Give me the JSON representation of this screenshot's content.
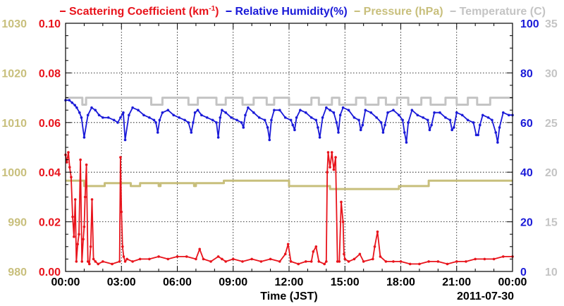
{
  "chart_data": {
    "type": "line",
    "legend": {
      "placement": "top",
      "entries": [
        {
          "label_before": "Scattering Coefficient (km",
          "label_sup": "-1",
          "label_after": ")",
          "color": "#e8141c"
        },
        {
          "label": "Relative Humidity(%)",
          "color": "#1a1ad8"
        },
        {
          "label": "Pressure (hPa)",
          "color": "#c8bf7c"
        },
        {
          "label": "Temperature (C)",
          "color": "#c4c4c4"
        }
      ]
    },
    "xlabel": "Time (JST)",
    "date_label": "2011-07-30",
    "x_unit": "hour (JST)",
    "xlim": [
      0,
      24
    ],
    "x_ticks": [
      0,
      3,
      6,
      9,
      12,
      15,
      18,
      21,
      24
    ],
    "x_tick_labels": [
      "00:00",
      "03:00",
      "06:00",
      "09:00",
      "12:00",
      "15:00",
      "18:00",
      "21:00",
      "00:00"
    ],
    "grid": true,
    "axes": {
      "scattering": {
        "side": "left-inner",
        "color": "#e8141c",
        "ylim": [
          0,
          0.1
        ],
        "tick_labels": [
          "0.00",
          "0.02",
          "0.04",
          "0.06",
          "0.08",
          "0.10"
        ]
      },
      "pressure": {
        "side": "left-outer",
        "color": "#c8bf7c",
        "ylim": [
          980,
          1030
        ],
        "tick_labels": [
          "980",
          "990",
          "1000",
          "1010",
          "1020",
          "1030"
        ]
      },
      "humidity": {
        "side": "right-inner",
        "color": "#1a1ad8",
        "ylim": [
          0,
          100
        ],
        "tick_labels": [
          "0",
          "20",
          "40",
          "60",
          "80",
          "100"
        ]
      },
      "temperature": {
        "side": "right-outer",
        "color": "#c4c4c4",
        "ylim": [
          10,
          35
        ],
        "tick_labels": [
          "10",
          "15",
          "20",
          "25",
          "30",
          "35"
        ]
      }
    },
    "series": [
      {
        "name": "Scattering Coefficient",
        "axis": "scattering",
        "color": "#e8141c",
        "markers": true,
        "x": [
          0.0,
          0.07,
          0.15,
          0.22,
          0.3,
          0.38,
          0.45,
          0.52,
          0.58,
          0.65,
          0.72,
          0.8,
          0.88,
          0.95,
          1.0,
          1.05,
          1.12,
          1.2,
          1.28,
          1.35,
          1.42,
          1.5,
          1.6,
          1.75,
          2.0,
          2.5,
          2.9,
          2.95,
          3.0,
          3.06,
          3.12,
          3.2,
          3.3,
          3.6,
          4.0,
          4.5,
          5.0,
          5.5,
          6.0,
          6.5,
          7.0,
          7.2,
          7.4,
          7.8,
          8.2,
          8.4,
          8.6,
          9.0,
          9.5,
          10.0,
          10.5,
          11.0,
          11.5,
          11.8,
          11.95,
          12.1,
          12.5,
          12.9,
          13.2,
          13.3,
          13.45,
          13.6,
          13.9,
          14.0,
          14.05,
          14.1,
          14.2,
          14.3,
          14.4,
          14.5,
          14.6,
          14.7,
          14.8,
          14.9,
          14.95,
          15.0,
          15.2,
          15.5,
          15.8,
          16.0,
          16.5,
          16.6,
          16.75,
          16.9,
          17.2,
          17.6,
          18.0,
          18.5,
          19.0,
          19.5,
          20.0,
          20.5,
          21.0,
          21.5,
          22.0,
          22.5,
          23.0,
          23.5,
          24.0
        ],
        "values": [
          0.047,
          0.044,
          0.048,
          0.042,
          0.038,
          0.022,
          0.014,
          0.029,
          0.004,
          0.011,
          0.015,
          0.045,
          0.004,
          0.013,
          0.018,
          0.03,
          0.043,
          0.004,
          0.003,
          0.01,
          0.029,
          0.005,
          0.004,
          0.003,
          0.004,
          0.003,
          0.004,
          0.046,
          0.024,
          0.01,
          0.006,
          0.004,
          0.005,
          0.004,
          0.005,
          0.005,
          0.006,
          0.005,
          0.006,
          0.006,
          0.005,
          0.009,
          0.005,
          0.004,
          0.006,
          0.005,
          0.004,
          0.005,
          0.004,
          0.005,
          0.004,
          0.005,
          0.004,
          0.007,
          0.011,
          0.004,
          0.003,
          0.004,
          0.004,
          0.008,
          0.01,
          0.004,
          0.003,
          0.004,
          0.04,
          0.048,
          0.042,
          0.048,
          0.041,
          0.046,
          0.004,
          0.004,
          0.028,
          0.02,
          0.007,
          0.005,
          0.004,
          0.005,
          0.007,
          0.004,
          0.005,
          0.01,
          0.016,
          0.006,
          0.004,
          0.004,
          0.004,
          0.003,
          0.003,
          0.004,
          0.004,
          0.003,
          0.004,
          0.004,
          0.005,
          0.005,
          0.005,
          0.006,
          0.006
        ]
      },
      {
        "name": "Relative Humidity",
        "axis": "humidity",
        "color": "#1a1ad8",
        "markers": true,
        "x": [
          0.0,
          0.2,
          0.35,
          0.5,
          0.6,
          0.75,
          0.85,
          1.0,
          1.2,
          1.4,
          1.6,
          1.8,
          2.0,
          2.3,
          2.6,
          2.8,
          2.95,
          3.1,
          3.2,
          3.4,
          3.6,
          3.9,
          4.2,
          4.5,
          4.75,
          4.85,
          4.95,
          5.05,
          5.2,
          5.5,
          5.8,
          6.1,
          6.4,
          6.6,
          6.75,
          6.85,
          6.95,
          7.1,
          7.3,
          7.6,
          7.9,
          8.1,
          8.2,
          8.3,
          8.4,
          8.6,
          8.9,
          9.2,
          9.45,
          9.55,
          9.65,
          9.8,
          10.1,
          10.4,
          10.7,
          10.85,
          10.95,
          11.05,
          11.2,
          11.5,
          11.8,
          12.1,
          12.2,
          12.3,
          12.4,
          12.6,
          12.9,
          13.2,
          13.45,
          13.55,
          13.65,
          13.8,
          14.0,
          14.2,
          14.4,
          14.55,
          14.65,
          14.75,
          14.9,
          15.2,
          15.5,
          15.75,
          15.85,
          15.95,
          16.1,
          16.4,
          16.7,
          16.95,
          17.05,
          17.15,
          17.3,
          17.6,
          17.9,
          18.1,
          18.2,
          18.3,
          18.4,
          18.6,
          18.9,
          19.2,
          19.45,
          19.55,
          19.65,
          19.8,
          20.1,
          20.4,
          20.65,
          20.75,
          20.85,
          21.0,
          21.3,
          21.6,
          21.9,
          22.05,
          22.15,
          22.25,
          22.4,
          22.7,
          22.9,
          23.1,
          23.2,
          23.3,
          23.5,
          23.8,
          24.0
        ],
        "values": [
          69,
          69,
          68,
          67,
          66,
          64,
          62,
          54,
          63,
          66,
          65,
          63,
          62,
          62,
          61,
          60,
          62,
          64,
          53,
          63,
          66,
          65,
          63,
          62,
          61,
          60,
          56,
          61,
          64,
          65,
          63,
          62,
          61,
          60,
          56,
          60,
          64,
          65,
          63,
          62,
          61,
          60,
          54,
          62,
          65,
          64,
          62,
          61,
          60,
          58,
          63,
          66,
          64,
          62,
          61,
          58,
          53,
          61,
          65,
          65,
          62,
          61,
          59,
          57,
          62,
          65,
          64,
          62,
          61,
          58,
          54,
          62,
          66,
          65,
          64,
          60,
          56,
          63,
          66,
          65,
          62,
          61,
          57,
          59,
          65,
          64,
          62,
          60,
          56,
          59,
          64,
          65,
          63,
          61,
          56,
          52,
          60,
          65,
          63,
          62,
          61,
          57,
          59,
          64,
          64,
          62,
          61,
          57,
          58,
          64,
          63,
          61,
          60,
          55,
          55,
          59,
          63,
          62,
          61,
          56,
          52,
          58,
          64,
          63,
          63
        ]
      },
      {
        "name": "Pressure",
        "axis": "pressure",
        "color": "#c8bf7c",
        "step": true,
        "x": [
          0.0,
          1.0,
          2.1,
          3.4,
          3.5,
          4.0,
          5.0,
          5.1,
          6.9,
          7.0,
          8.5,
          8.9,
          12.0,
          13.9,
          14.2,
          17.9,
          19.5,
          24.0
        ],
        "values": [
          998.3,
          997.2,
          997.8,
          997.8,
          997.2,
          997.8,
          997.2,
          997.8,
          997.2,
          997.8,
          998.3,
          998.3,
          997.2,
          997.2,
          996.6,
          997.2,
          998.3,
          998.3
        ]
      },
      {
        "name": "Temperature",
        "axis": "temperature",
        "color": "#c4c4c4",
        "step": true,
        "x": [
          0.0,
          0.9,
          1.1,
          2.2,
          4.6,
          5.2,
          6.6,
          7.1,
          8.1,
          8.6,
          9.5,
          10.1,
          10.8,
          11.2,
          12.0,
          13.2,
          13.6,
          14.3,
          14.7,
          15.6,
          16.1,
          16.8,
          17.2,
          17.8,
          18.4,
          19.1,
          19.6,
          20.4,
          21.0,
          21.6,
          22.1,
          22.8,
          23.3,
          24.0
        ],
        "values": [
          27.5,
          26.8,
          27.5,
          27.5,
          26.8,
          27.5,
          26.8,
          27.5,
          26.8,
          27.5,
          26.8,
          27.5,
          26.8,
          27.5,
          26.8,
          27.5,
          26.8,
          27.5,
          26.8,
          27.5,
          26.8,
          27.5,
          26.8,
          27.5,
          26.8,
          27.5,
          26.8,
          27.5,
          26.8,
          27.5,
          26.8,
          27.5,
          27.5,
          27.5
        ]
      }
    ]
  }
}
